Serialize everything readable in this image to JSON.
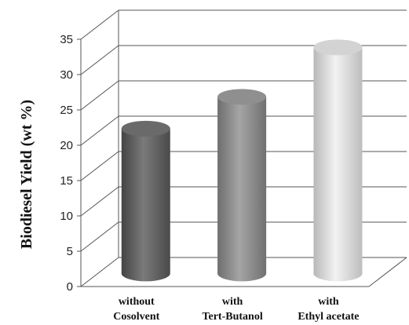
{
  "chart_data": {
    "type": "bar",
    "style": "3d-cylinder",
    "title": "",
    "xlabel": "",
    "ylabel": "Biodiesel Yield (wt %)",
    "ylim": [
      0,
      35
    ],
    "y_ticks": [
      0,
      5,
      10,
      15,
      20,
      25,
      30,
      35
    ],
    "grid": true,
    "legend": "none",
    "categories": [
      [
        "without",
        "Cosolvent"
      ],
      [
        "with",
        "Tert-Butanol"
      ],
      [
        "with",
        "Ethyl acetate"
      ]
    ],
    "values": [
      20.5,
      25,
      32
    ],
    "colors": [
      "#6a6a6a",
      "#8f8f8f",
      "#d3d3d3"
    ]
  }
}
